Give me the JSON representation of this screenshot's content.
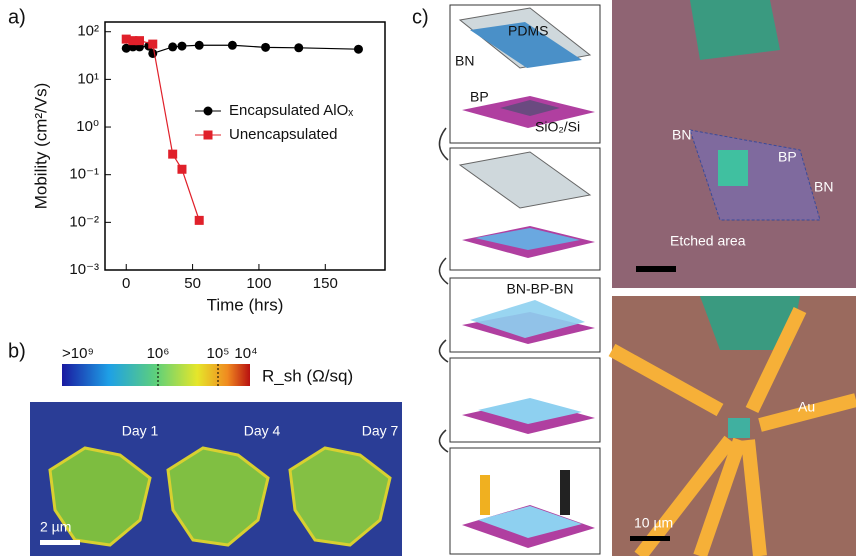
{
  "chart_data": {
    "type": "line",
    "log_y": true,
    "grid": false,
    "legend": "center right",
    "xlabel": "Time (hrs)",
    "ylabel": "Mobility (cm²/Vs)",
    "xlim": [
      -16,
      195
    ],
    "xticks": [
      0,
      50,
      100,
      150
    ],
    "ylim": [
      0.001,
      160
    ],
    "yticks": [
      {
        "value": 100,
        "label": "10²"
      },
      {
        "value": 10,
        "label": "10¹"
      },
      {
        "value": 1,
        "label": "10⁰"
      },
      {
        "value": 0.1,
        "label": "10⁻¹"
      },
      {
        "value": 0.01,
        "label": "10⁻²"
      },
      {
        "value": 0.001,
        "label": "10⁻³"
      }
    ],
    "series": [
      {
        "name": "Encapsulated AlOₓ",
        "color": "#000000",
        "marker": "circle",
        "x": [
          0,
          5,
          10,
          17,
          20,
          35,
          42,
          55,
          80,
          105,
          130,
          175
        ],
        "values": [
          45,
          48,
          48,
          50,
          35,
          48,
          50,
          52,
          52,
          47,
          46,
          43
        ]
      },
      {
        "name": "Unencapsulated",
        "color": "#e0202a",
        "marker": "square",
        "x": [
          0,
          5,
          10,
          20,
          35,
          42,
          55
        ],
        "values": [
          70,
          65,
          65,
          55,
          0.27,
          0.13,
          0.011
        ]
      }
    ]
  },
  "panel_labels": [
    "a)",
    "b)",
    "c)"
  ],
  "panel_b": {
    "colorbar_labels": [
      ">10⁹",
      "10⁶",
      "10⁵",
      "10⁴"
    ],
    "colorbar_title": "R_sh (Ω/sq)",
    "days": [
      "Day 1",
      "Day 4",
      "Day 7"
    ],
    "scale_bar": "2 µm"
  },
  "panel_c": {
    "step1": [
      "PDMS",
      "BN",
      "BP",
      "SiO₂/Si"
    ],
    "step3": "BN-BP-BN",
    "optical_top": [
      "BN",
      "BP",
      "BN",
      "Etched area"
    ],
    "optical_bottom": [
      "Au",
      "10 µm"
    ]
  }
}
